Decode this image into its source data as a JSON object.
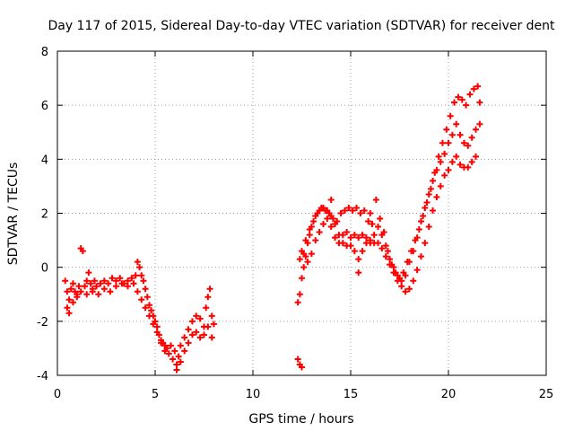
{
  "chart_data": {
    "type": "scatter",
    "title": "Day 117 of 2015, Sidereal Day-to-day VTEC variation (SDTVAR) for receiver dent",
    "xlabel": "GPS time / hours",
    "ylabel": "SDTVAR / TECUs",
    "xlim": [
      0,
      25
    ],
    "ylim": [
      -4,
      8
    ],
    "x_ticks": [
      0,
      5,
      10,
      15,
      20,
      25
    ],
    "y_ticks": [
      -4,
      -2,
      0,
      2,
      4,
      6,
      8
    ],
    "x_tick_labels": [
      "0",
      "5",
      "10",
      "15",
      "20",
      "25"
    ],
    "y_tick_labels": [
      "-4",
      "-2",
      "0",
      "2",
      "4",
      "6",
      "8"
    ],
    "grid": true,
    "marker": "+",
    "color": "#ff0000",
    "series": [
      {
        "values": [
          [
            0.4,
            -0.5
          ],
          [
            0.5,
            -0.9
          ],
          [
            0.6,
            -1.2
          ],
          [
            0.7,
            -0.8
          ],
          [
            0.8,
            -0.6
          ],
          [
            0.9,
            -0.9
          ],
          [
            1.0,
            -1.1
          ],
          [
            1.1,
            -0.7
          ],
          [
            1.2,
            0.7
          ],
          [
            1.3,
            0.6
          ],
          [
            1.4,
            -0.7
          ],
          [
            1.5,
            -0.5
          ],
          [
            1.6,
            -0.2
          ],
          [
            1.7,
            -0.6
          ],
          [
            1.8,
            -0.8
          ],
          [
            1.9,
            -0.5
          ],
          [
            2.0,
            -0.7
          ],
          [
            2.2,
            -0.6
          ],
          [
            2.4,
            -0.5
          ],
          [
            2.6,
            -0.6
          ],
          [
            2.8,
            -0.4
          ],
          [
            3.0,
            -0.5
          ],
          [
            3.2,
            -0.4
          ],
          [
            3.4,
            -0.6
          ],
          [
            3.6,
            -0.5
          ],
          [
            3.8,
            -0.4
          ],
          [
            4.0,
            -0.3
          ],
          [
            4.1,
            0.2
          ],
          [
            4.2,
            0.0
          ],
          [
            4.3,
            -0.3
          ],
          [
            4.4,
            -0.5
          ],
          [
            4.5,
            -0.8
          ],
          [
            4.6,
            -1.1
          ],
          [
            4.7,
            -1.4
          ],
          [
            4.8,
            -1.6
          ],
          [
            4.9,
            -1.8
          ],
          [
            5.0,
            -2.0
          ],
          [
            5.1,
            -2.2
          ],
          [
            5.2,
            -2.5
          ],
          [
            5.3,
            -2.7
          ],
          [
            5.4,
            -2.8
          ],
          [
            5.5,
            -2.9
          ],
          [
            5.6,
            -3.0
          ],
          [
            5.8,
            -2.9
          ],
          [
            6.0,
            -3.1
          ],
          [
            6.1,
            -3.6
          ],
          [
            6.2,
            -3.3
          ],
          [
            6.3,
            -2.9
          ],
          [
            6.5,
            -2.6
          ],
          [
            6.7,
            -2.3
          ],
          [
            6.9,
            -2.0
          ],
          [
            7.1,
            -1.8
          ],
          [
            7.3,
            -1.9
          ],
          [
            7.5,
            -2.2
          ],
          [
            7.6,
            -1.5
          ],
          [
            7.7,
            -1.1
          ],
          [
            7.8,
            -0.8
          ],
          [
            7.9,
            -1.8
          ],
          [
            8.0,
            -2.1
          ]
        ]
      },
      {
        "values": [
          [
            0.5,
            -1.5
          ],
          [
            0.6,
            -1.7
          ],
          [
            0.8,
            -1.3
          ],
          [
            1.0,
            -1.0
          ],
          [
            1.2,
            -0.9
          ],
          [
            1.5,
            -1.0
          ],
          [
            1.8,
            -0.9
          ],
          [
            2.1,
            -1.0
          ],
          [
            2.4,
            -0.8
          ],
          [
            2.7,
            -0.9
          ],
          [
            3.0,
            -0.7
          ],
          [
            3.3,
            -0.6
          ],
          [
            3.6,
            -0.7
          ],
          [
            3.9,
            -0.6
          ],
          [
            4.1,
            -0.9
          ],
          [
            4.3,
            -1.2
          ],
          [
            4.5,
            -1.5
          ],
          [
            4.7,
            -1.8
          ],
          [
            4.9,
            -2.1
          ],
          [
            5.1,
            -2.4
          ],
          [
            5.3,
            -2.8
          ],
          [
            5.5,
            -3.1
          ],
          [
            5.7,
            -3.2
          ],
          [
            5.9,
            -3.4
          ],
          [
            6.1,
            -3.8
          ],
          [
            6.3,
            -3.5
          ],
          [
            6.5,
            -3.1
          ],
          [
            6.7,
            -2.8
          ],
          [
            6.9,
            -2.5
          ],
          [
            7.1,
            -2.4
          ],
          [
            7.3,
            -2.6
          ],
          [
            7.5,
            -2.5
          ],
          [
            7.7,
            -2.2
          ],
          [
            7.9,
            -2.6
          ]
        ]
      },
      {
        "values": [
          [
            12.3,
            -1.3
          ],
          [
            12.4,
            -1.0
          ],
          [
            12.5,
            -0.4
          ],
          [
            12.6,
            0.0
          ],
          [
            12.7,
            0.4
          ],
          [
            12.8,
            0.9
          ],
          [
            12.9,
            1.2
          ],
          [
            13.0,
            1.5
          ],
          [
            13.2,
            1.9
          ],
          [
            13.4,
            2.1
          ],
          [
            13.6,
            2.2
          ],
          [
            13.8,
            2.1
          ],
          [
            14.0,
            1.9
          ],
          [
            14.2,
            1.6
          ],
          [
            14.4,
            1.2
          ],
          [
            14.6,
            0.9
          ],
          [
            14.8,
            0.8
          ],
          [
            15.0,
            0.8
          ],
          [
            15.2,
            0.6
          ],
          [
            15.4,
            0.3
          ],
          [
            15.6,
            0.6
          ],
          [
            15.8,
            0.9
          ],
          [
            16.0,
            0.9
          ],
          [
            16.2,
            0.9
          ],
          [
            16.4,
            0.9
          ],
          [
            16.6,
            0.7
          ],
          [
            16.8,
            0.4
          ],
          [
            17.0,
            0.1
          ],
          [
            17.2,
            -0.2
          ],
          [
            17.4,
            -0.5
          ],
          [
            17.6,
            -0.7
          ],
          [
            17.8,
            -0.9
          ],
          [
            18.0,
            -0.8
          ],
          [
            18.2,
            -0.5
          ],
          [
            18.4,
            -0.1
          ],
          [
            18.6,
            0.4
          ],
          [
            18.8,
            0.9
          ],
          [
            19.0,
            1.5
          ],
          [
            19.2,
            2.1
          ],
          [
            19.4,
            2.6
          ],
          [
            19.6,
            3.0
          ],
          [
            19.8,
            3.4
          ],
          [
            20.0,
            3.6
          ],
          [
            20.2,
            3.9
          ],
          [
            20.4,
            4.1
          ],
          [
            20.6,
            3.8
          ],
          [
            20.8,
            3.7
          ],
          [
            21.0,
            3.7
          ],
          [
            21.2,
            3.9
          ],
          [
            21.4,
            4.1
          ]
        ]
      },
      {
        "values": [
          [
            12.4,
            0.3
          ],
          [
            12.6,
            0.5
          ],
          [
            12.8,
            0.2
          ],
          [
            13.0,
            0.5
          ],
          [
            13.2,
            1.0
          ],
          [
            13.4,
            1.3
          ],
          [
            13.6,
            1.6
          ],
          [
            13.8,
            1.8
          ],
          [
            14.0,
            1.5
          ],
          [
            14.2,
            1.1
          ],
          [
            14.4,
            0.9
          ],
          [
            14.6,
            1.2
          ],
          [
            14.8,
            1.3
          ],
          [
            15.0,
            1.1
          ],
          [
            15.2,
            1.2
          ],
          [
            15.4,
            1.1
          ],
          [
            15.6,
            1.2
          ],
          [
            15.8,
            1.1
          ],
          [
            16.0,
            1.0
          ],
          [
            16.2,
            1.2
          ],
          [
            16.4,
            1.5
          ],
          [
            16.6,
            1.2
          ],
          [
            16.8,
            0.8
          ],
          [
            17.0,
            0.3
          ],
          [
            17.2,
            0.0
          ],
          [
            17.4,
            -0.3
          ],
          [
            17.6,
            -0.5
          ],
          [
            17.8,
            -0.3
          ],
          [
            18.0,
            0.2
          ],
          [
            18.2,
            0.6
          ],
          [
            18.4,
            1.1
          ],
          [
            18.6,
            1.7
          ],
          [
            18.8,
            2.2
          ],
          [
            19.0,
            2.7
          ],
          [
            19.2,
            3.2
          ],
          [
            19.4,
            3.6
          ],
          [
            19.6,
            3.9
          ],
          [
            19.8,
            4.2
          ],
          [
            20.0,
            4.6
          ],
          [
            20.2,
            4.9
          ],
          [
            20.4,
            5.3
          ],
          [
            20.6,
            4.9
          ],
          [
            20.8,
            4.6
          ],
          [
            21.0,
            4.5
          ],
          [
            21.2,
            4.8
          ],
          [
            21.4,
            5.1
          ],
          [
            21.6,
            5.3
          ]
        ]
      },
      {
        "values": [
          [
            12.5,
            0.6
          ],
          [
            12.7,
            1.0
          ],
          [
            12.9,
            1.4
          ],
          [
            13.1,
            1.7
          ],
          [
            13.3,
            2.0
          ],
          [
            13.5,
            2.2
          ],
          [
            13.7,
            2.1
          ],
          [
            13.9,
            2.0
          ],
          [
            14.1,
            1.8
          ],
          [
            14.3,
            1.7
          ],
          [
            14.5,
            2.0
          ],
          [
            14.7,
            2.1
          ],
          [
            14.9,
            2.2
          ],
          [
            15.1,
            2.1
          ],
          [
            15.3,
            2.2
          ],
          [
            15.5,
            2.0
          ],
          [
            15.7,
            2.1
          ],
          [
            15.9,
            1.7
          ],
          [
            16.1,
            1.6
          ],
          [
            16.3,
            2.5
          ],
          [
            16.5,
            1.8
          ],
          [
            16.7,
            1.3
          ],
          [
            16.9,
            0.6
          ],
          [
            17.1,
            0.1
          ],
          [
            17.3,
            -0.2
          ],
          [
            17.5,
            -0.4
          ],
          [
            17.7,
            -0.2
          ],
          [
            17.9,
            0.2
          ],
          [
            18.1,
            0.6
          ],
          [
            18.3,
            1.0
          ],
          [
            18.5,
            1.4
          ],
          [
            18.7,
            1.9
          ],
          [
            18.9,
            2.4
          ],
          [
            19.1,
            2.9
          ],
          [
            19.3,
            3.5
          ],
          [
            19.5,
            4.1
          ],
          [
            19.7,
            4.6
          ],
          [
            19.9,
            5.1
          ],
          [
            20.1,
            5.6
          ],
          [
            20.3,
            6.1
          ],
          [
            20.5,
            6.3
          ],
          [
            20.7,
            6.2
          ],
          [
            20.9,
            6.0
          ],
          [
            21.1,
            6.4
          ],
          [
            21.3,
            6.6
          ],
          [
            21.5,
            6.7
          ],
          [
            21.6,
            6.1
          ]
        ]
      },
      {
        "values": [
          [
            12.3,
            -3.4
          ],
          [
            12.4,
            -3.6
          ],
          [
            12.5,
            -3.7
          ],
          [
            14.0,
            2.5
          ],
          [
            15.4,
            -0.2
          ],
          [
            16.0,
            2.0
          ]
        ]
      }
    ]
  }
}
